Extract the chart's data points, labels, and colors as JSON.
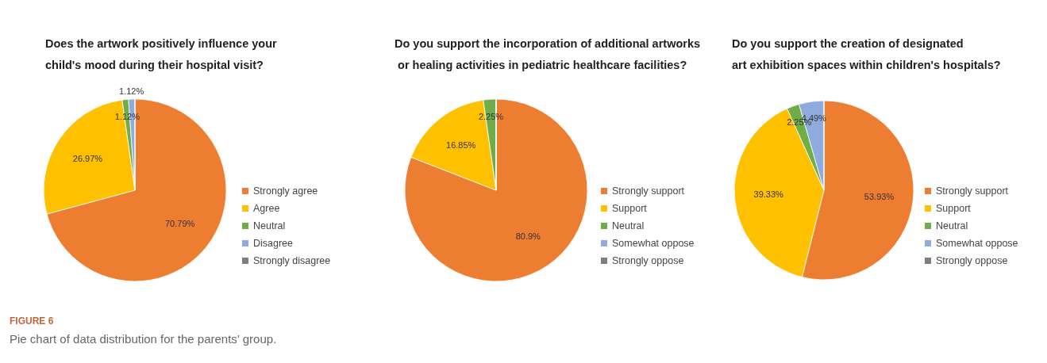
{
  "chart_data": [
    {
      "type": "pie",
      "title": "Does the artwork positively influence your\nchild's mood during their hospital visit?",
      "categories": [
        "Strongly agree",
        "Agree",
        "Neutral",
        "Disagree",
        "Strongly disagree"
      ],
      "values": [
        70.79,
        26.97,
        1.12,
        1.12,
        0
      ],
      "value_labels": [
        "70.79%",
        "26.97%",
        "1.12%",
        "1.12%",
        null
      ],
      "colors": [
        "#ed7d31",
        "#ffc000",
        "#70ad47",
        "#8faadc",
        "#7f7f7f"
      ],
      "legend": "right",
      "annotations": [
        "FIGURE 6",
        "Pie chart of data distribution for the parents’ group."
      ]
    },
    {
      "type": "pie",
      "title": "Do you support the incorporation of additional artworks\n or healing activities in pediatric healthcare facilities?",
      "categories": [
        "Strongly support",
        "Support",
        "Neutral",
        "Somewhat oppose",
        "Strongly oppose"
      ],
      "values": [
        80.9,
        16.85,
        2.25,
        0,
        0
      ],
      "value_labels": [
        "80.9%",
        "16.85%",
        "2.25%",
        null,
        null
      ],
      "colors": [
        "#ed7d31",
        "#ffc000",
        "#70ad47",
        "#8faadc",
        "#7f7f7f"
      ],
      "legend": "right"
    },
    {
      "type": "pie",
      "title": "Do you support the creation of designated\nart exhibition spaces within children's hospitals?",
      "categories": [
        "Strongly support",
        "Support",
        "Neutral",
        "Somewhat oppose",
        "Strongly oppose"
      ],
      "values": [
        53.93,
        39.33,
        2.25,
        4.49,
        0
      ],
      "value_labels": [
        "53.93%",
        "39.33%",
        "2.25%",
        "4.49%",
        null
      ],
      "colors": [
        "#ed7d31",
        "#ffc000",
        "#70ad47",
        "#8faadc",
        "#7f7f7f"
      ],
      "legend": "right"
    }
  ]
}
